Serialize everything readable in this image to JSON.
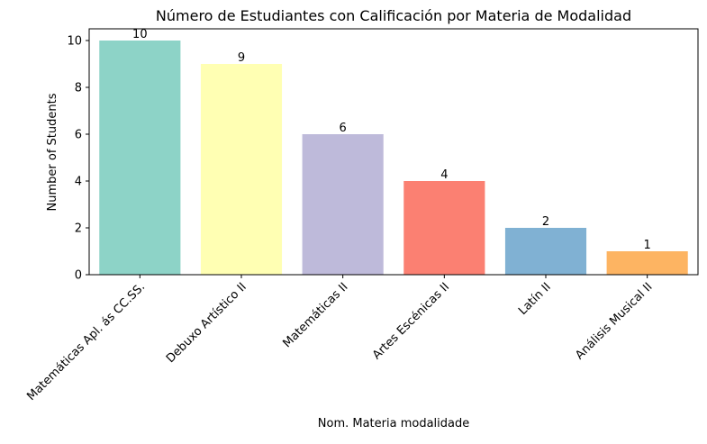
{
  "chart_data": {
    "type": "bar",
    "title": "Número de Estudiantes con Calificación por Materia de Modalidad",
    "xlabel": "Nom. Materia modalidade",
    "ylabel": "Number of Students",
    "categories": [
      "Matemáticas Apl. ás CC.SS.",
      "Debuxo Artístico II",
      "Matemáticas II",
      "Artes Escénicas II",
      "Latín II",
      "Análisis Musical II"
    ],
    "values": [
      10,
      9,
      6,
      4,
      2,
      1
    ],
    "data_labels": [
      "10",
      "9",
      "6",
      "4",
      "2",
      "1"
    ],
    "colors": [
      "#8dd3c7",
      "#ffffb3",
      "#bebada",
      "#fb8072",
      "#80b1d3",
      "#fdb462"
    ],
    "ylim": [
      0,
      10.5
    ],
    "yticks": [
      0,
      2,
      4,
      6,
      8,
      10
    ],
    "grid": false,
    "legend": "none"
  }
}
